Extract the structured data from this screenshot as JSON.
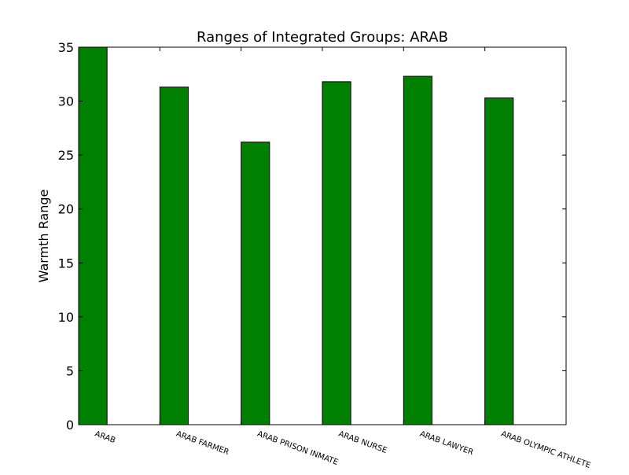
{
  "chart_data": {
    "type": "bar",
    "title": "Ranges of Integrated Groups: ARAB",
    "xlabel": "",
    "ylabel": "Warmth Range",
    "categories": [
      "ARAB",
      "ARAB FARMER",
      "ARAB PRISON INMATE",
      "ARAB NURSE",
      "ARAB LAWYER",
      "ARAB OLYMPIC ATHLETE"
    ],
    "values": [
      35.0,
      31.3,
      26.2,
      31.8,
      32.3,
      30.3
    ],
    "ylim": [
      0,
      35
    ],
    "yticks": [
      0,
      5,
      10,
      15,
      20,
      25,
      30,
      35
    ],
    "bar_color": "#008000",
    "grid": false,
    "legend": "none"
  }
}
